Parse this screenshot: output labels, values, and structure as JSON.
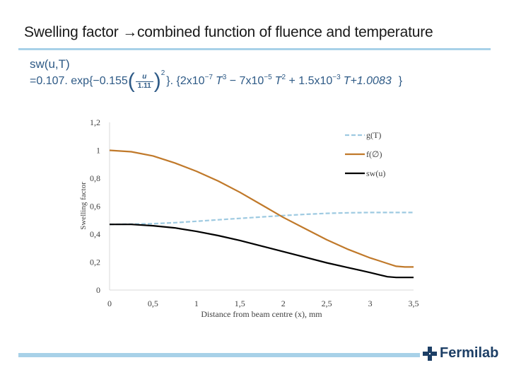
{
  "slide": {
    "title": "Swelling factor →combined function of fluence and temperature",
    "equation": {
      "lhs": "sw(u,T)",
      "rhs_prefix": "=0.107. exp{−0.155",
      "frac_num": "u",
      "frac_den": "1.11",
      "exp_power": "2",
      "poly_a": "}. {2x10",
      "exp_a": "−7",
      "poly_b": "T",
      "exp_b": "3",
      "poly_c": " − 7x10",
      "exp_c": "−5",
      "poly_d": "T",
      "exp_d": "2",
      "poly_e": " + 1.5x10",
      "exp_e": "−3",
      "poly_f": "T+1.0083",
      "poly_g": "}"
    },
    "logo_text": "Fermilab",
    "colors": {
      "accent_bar": "#a8d1e8",
      "equation": "#2e5a86",
      "logo": "#1d3f66"
    }
  },
  "chart_data": {
    "type": "line",
    "title": "",
    "xlabel": "Distance from beam centre (x), mm",
    "ylabel": "Swelling factor",
    "xlim": [
      0,
      3.5
    ],
    "ylim": [
      0,
      1.2
    ],
    "x_ticks": [
      "0",
      "0,5",
      "1",
      "1,5",
      "2",
      "2,5",
      "3",
      "3,5"
    ],
    "y_ticks": [
      "0",
      "0,2",
      "0,4",
      "0,6",
      "0,8",
      "1",
      "1,2"
    ],
    "x_tick_values": [
      0,
      0.5,
      1,
      1.5,
      2,
      2.5,
      3,
      3.5
    ],
    "y_tick_values": [
      0,
      0.2,
      0.4,
      0.6,
      0.8,
      1,
      1.2
    ],
    "grid": false,
    "legend_position": "top-right",
    "series": [
      {
        "name": "g(T)",
        "color": "#9ecae1",
        "style": "dashed",
        "x": [
          0,
          0.25,
          0.5,
          0.75,
          1.0,
          1.25,
          1.5,
          1.75,
          2.0,
          2.25,
          2.5,
          2.75,
          3.0,
          3.25,
          3.5
        ],
        "y": [
          0.47,
          0.472,
          0.475,
          0.482,
          0.492,
          0.503,
          0.513,
          0.523,
          0.533,
          0.542,
          0.549,
          0.553,
          0.555,
          0.555,
          0.555
        ]
      },
      {
        "name": "f(∅)",
        "color": "#c0792a",
        "style": "solid",
        "x": [
          0,
          0.25,
          0.5,
          0.75,
          1.0,
          1.25,
          1.5,
          1.75,
          2.0,
          2.25,
          2.5,
          2.75,
          3.0,
          3.1,
          3.2,
          3.3,
          3.4,
          3.5
        ],
        "y": [
          1.0,
          0.99,
          0.96,
          0.91,
          0.85,
          0.78,
          0.7,
          0.61,
          0.52,
          0.44,
          0.36,
          0.29,
          0.23,
          0.21,
          0.19,
          0.17,
          0.165,
          0.165
        ]
      },
      {
        "name": "sw(u)",
        "color": "#000000",
        "style": "solid",
        "x": [
          0,
          0.25,
          0.5,
          0.75,
          1.0,
          1.25,
          1.5,
          1.75,
          2.0,
          2.25,
          2.5,
          2.75,
          3.0,
          3.1,
          3.2,
          3.3,
          3.4,
          3.5
        ],
        "y": [
          0.47,
          0.47,
          0.46,
          0.445,
          0.42,
          0.39,
          0.355,
          0.315,
          0.275,
          0.235,
          0.195,
          0.16,
          0.125,
          0.11,
          0.095,
          0.09,
          0.09,
          0.09
        ]
      }
    ]
  }
}
